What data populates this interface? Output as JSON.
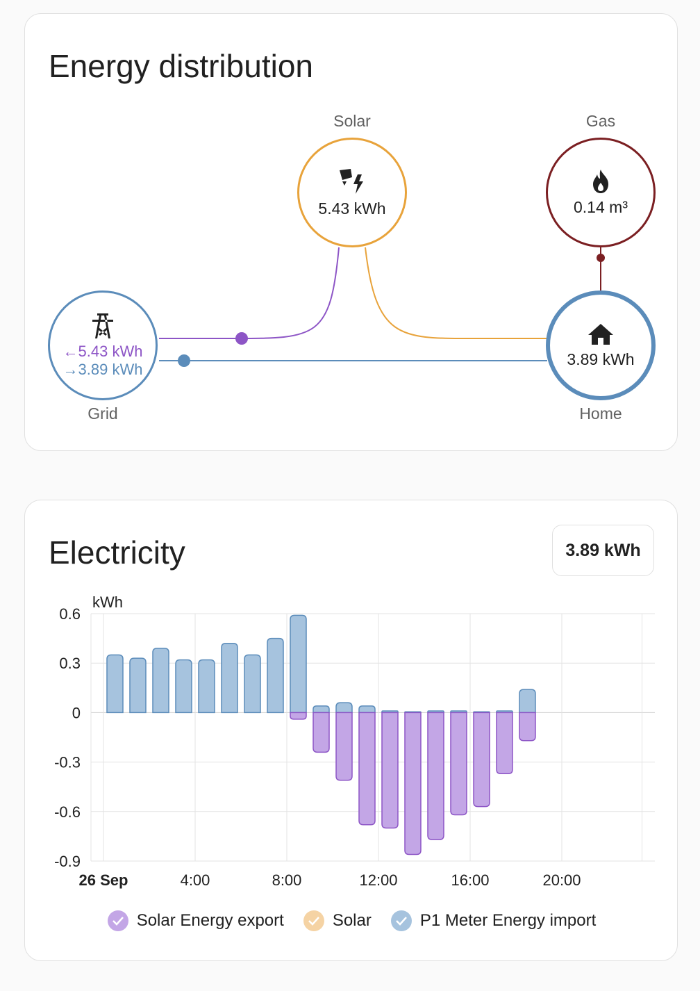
{
  "distribution": {
    "title": "Energy distribution",
    "solar": {
      "label": "Solar",
      "value": "5.43 kWh"
    },
    "gas": {
      "label": "Gas",
      "value": "0.14 m³"
    },
    "grid": {
      "label": "Grid",
      "import_value": "5.43 kWh",
      "export_value": "3.89 kWh",
      "import_arrow": "←",
      "export_arrow": "→"
    },
    "home": {
      "label": "Home",
      "value": "3.89 kWh"
    },
    "colors": {
      "solar": "#e8a33b",
      "gas": "#7b1f22",
      "grid": "#5b8cba",
      "home": "#5b8cba",
      "return": "#8d55c6"
    }
  },
  "electricity": {
    "title": "Electricity",
    "total": "3.89 kWh"
  },
  "chart_data": {
    "type": "bar",
    "ylabel": "kWh",
    "ylim": [
      -0.9,
      0.6
    ],
    "yticks": [
      "0.6",
      "0.3",
      "0",
      "-0.3",
      "-0.6",
      "-0.9"
    ],
    "ytick_values": [
      0.6,
      0.3,
      0,
      -0.3,
      -0.6,
      -0.9
    ],
    "xtick_labels": [
      "26 Sep",
      "4:00",
      "8:00",
      "12:00",
      "16:00",
      "20:00"
    ],
    "xtick_hours": [
      0,
      4,
      8,
      12,
      16,
      20
    ],
    "x_range_hours": [
      0,
      24
    ],
    "grid": true,
    "categories": [
      "0:00",
      "1:00",
      "2:00",
      "3:00",
      "4:00",
      "5:00",
      "6:00",
      "7:00",
      "8:00",
      "9:00",
      "10:00",
      "11:00",
      "12:00",
      "13:00",
      "14:00",
      "15:00",
      "16:00",
      "17:00",
      "18:00"
    ],
    "series": [
      {
        "name": "P1 Meter Energy import",
        "color": "#a6c3de",
        "stroke": "#5b8cba",
        "values": [
          0.35,
          0.33,
          0.39,
          0.32,
          0.32,
          0.42,
          0.35,
          0.45,
          0.59,
          0.04,
          0.06,
          0.04,
          0.01,
          0.005,
          0.01,
          0.01,
          0.005,
          0.01,
          0.14
        ]
      },
      {
        "name": "Solar Energy export",
        "color": "#c3a6e6",
        "stroke": "#8d55c6",
        "values": [
          0,
          0,
          0,
          0,
          0,
          0,
          0,
          0,
          -0.04,
          -0.24,
          -0.41,
          -0.68,
          -0.7,
          -0.86,
          -0.77,
          -0.62,
          -0.57,
          -0.37,
          -0.17
        ]
      }
    ],
    "legend": [
      {
        "name": "Solar Energy export",
        "color": "#c3a6e6"
      },
      {
        "name": "Solar",
        "color": "#f5d3a4"
      },
      {
        "name": "P1 Meter Energy import",
        "color": "#a6c3de"
      }
    ]
  }
}
